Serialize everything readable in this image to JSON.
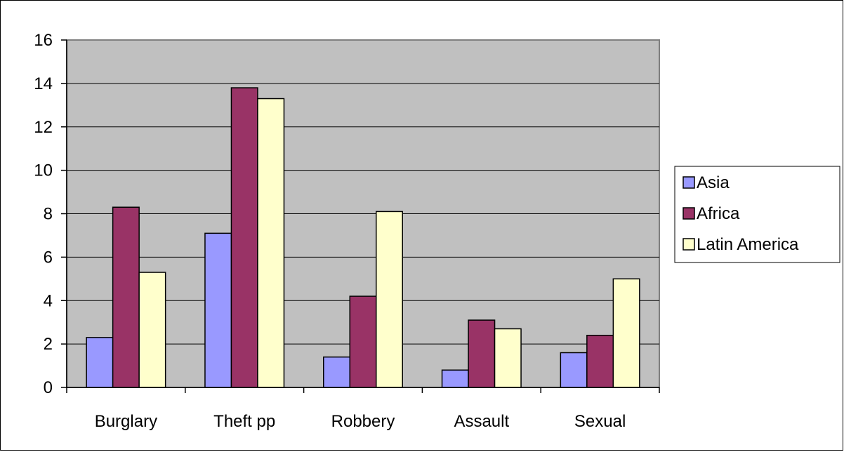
{
  "chart_data": {
    "type": "bar",
    "title": "",
    "xlabel": "",
    "ylabel": "",
    "categories": [
      "Burglary",
      "Theft pp",
      "Robbery",
      "Assault",
      "Sexual"
    ],
    "series": [
      {
        "name": "Asia",
        "values": [
          2.3,
          7.1,
          1.4,
          0.8,
          1.6
        ],
        "color": "#9999ff"
      },
      {
        "name": "Africa",
        "values": [
          8.3,
          13.8,
          4.2,
          3.1,
          2.4
        ],
        "color": "#993366"
      },
      {
        "name": "Latin America",
        "values": [
          5.3,
          13.3,
          8.1,
          2.7,
          5.0
        ],
        "color": "#ffffcc"
      }
    ],
    "ylim": [
      0,
      16
    ],
    "yticks": [
      0,
      2,
      4,
      6,
      8,
      10,
      12,
      14,
      16
    ],
    "grid": true,
    "legend": "right",
    "plot_background": "#c0c0c0"
  }
}
